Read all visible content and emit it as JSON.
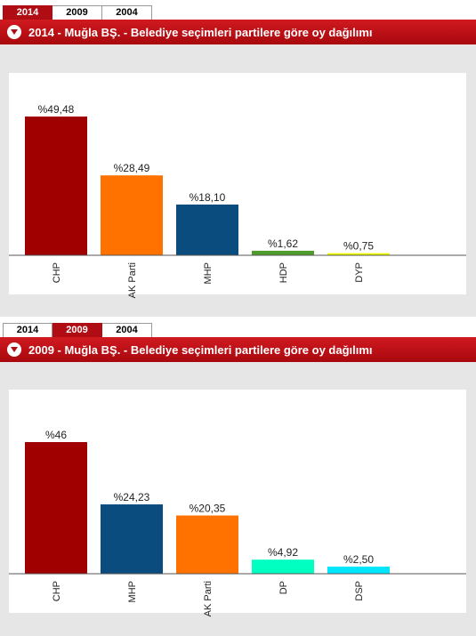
{
  "tabs": [
    "2014",
    "2009",
    "2004"
  ],
  "panels": [
    {
      "active_tab": "2014",
      "title": "2014 - Muğla BŞ. - Belediye seçimleri partilere göre oy dağılımı"
    },
    {
      "active_tab": "2009",
      "title": "2009 - Muğla BŞ. - Belediye seçimleri partilere göre oy dağılımı"
    }
  ],
  "chart_data": [
    {
      "type": "bar",
      "categories": [
        "CHP",
        "AK Parti",
        "MHP",
        "HDP",
        "DYP"
      ],
      "values": [
        49.48,
        28.49,
        18.1,
        1.62,
        0.75
      ],
      "labels": [
        "%49,48",
        "%28,49",
        "%18,10",
        "%1,62",
        "%0,75"
      ],
      "colors": [
        "#a00000",
        "#ff7200",
        "#0a4c7e",
        "#4e9c2c",
        "#eaff00"
      ],
      "ylim": [
        0,
        49.48
      ],
      "grid": false,
      "legend": "none"
    },
    {
      "type": "bar",
      "categories": [
        "CHP",
        "MHP",
        "AK Parti",
        "DP",
        "DSP"
      ],
      "values": [
        46,
        24.23,
        20.35,
        4.92,
        2.5
      ],
      "labels": [
        "%46",
        "%24,23",
        "%20,35",
        "%4,92",
        "%2,50"
      ],
      "colors": [
        "#a00000",
        "#0a4c7e",
        "#ff7200",
        "#00ffc0",
        "#00e6ff"
      ],
      "ylim": [
        0,
        46
      ],
      "grid": false,
      "legend": "none"
    }
  ]
}
